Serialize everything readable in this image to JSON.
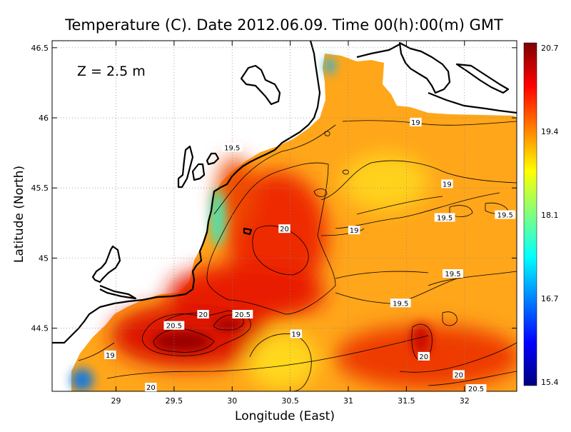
{
  "title": "Temperature (C). Date 2012.06.09. Time 00(h):00(m) GMT",
  "depth_label": "Z = 2.5 m",
  "colorbar": {
    "colors": [
      "#00007f",
      "#0000ff",
      "#007fff",
      "#00ffff",
      "#7fff7f",
      "#ffff00",
      "#ff7f00",
      "#ff0000",
      "#7f0000"
    ],
    "labels": [
      "20.7",
      "19.4",
      "18.1",
      "16.7",
      "15.4"
    ]
  },
  "chart_data": {
    "type": "heatmap",
    "title": "Temperature (C). Date 2012.06.09. Time 00(h):00(m) GMT",
    "xlabel": "Longitude (East)",
    "ylabel": "Latitude (North)",
    "xlim": [
      28.45,
      32.45
    ],
    "ylim": [
      44.05,
      46.55
    ],
    "x_ticks": [
      "29",
      "29.5",
      "30",
      "30.5",
      "31",
      "31.5",
      "32"
    ],
    "y_ticks": [
      "44.5",
      "45",
      "45.5",
      "46",
      "46.5"
    ],
    "grid": true,
    "value_range": [
      15.4,
      20.7
    ],
    "colorbar_ticks": [
      "20.7",
      "19.4",
      "18.1",
      "16.7",
      "15.4"
    ],
    "contour_labels": [
      {
        "lon": 31.58,
        "lat": 45.97,
        "text": "19"
      },
      {
        "lon": 30.0,
        "lat": 45.79,
        "text": "19.5"
      },
      {
        "lon": 31.85,
        "lat": 45.53,
        "text": "19"
      },
      {
        "lon": 31.05,
        "lat": 45.2,
        "text": "19"
      },
      {
        "lon": 30.45,
        "lat": 45.21,
        "text": "20"
      },
      {
        "lon": 31.83,
        "lat": 45.29,
        "text": "19.5"
      },
      {
        "lon": 32.35,
        "lat": 45.31,
        "text": "19.5"
      },
      {
        "lon": 31.9,
        "lat": 44.89,
        "text": "19.5"
      },
      {
        "lon": 31.45,
        "lat": 44.68,
        "text": "19.5"
      },
      {
        "lon": 29.75,
        "lat": 44.6,
        "text": "20"
      },
      {
        "lon": 30.09,
        "lat": 44.6,
        "text": "20.5"
      },
      {
        "lon": 29.5,
        "lat": 44.52,
        "text": "20.5"
      },
      {
        "lon": 30.55,
        "lat": 44.46,
        "text": "19"
      },
      {
        "lon": 28.95,
        "lat": 44.31,
        "text": "19"
      },
      {
        "lon": 31.65,
        "lat": 44.3,
        "text": "20"
      },
      {
        "lon": 31.95,
        "lat": 44.17,
        "text": "20"
      },
      {
        "lon": 29.3,
        "lat": 44.08,
        "text": "20"
      },
      {
        "lon": 32.1,
        "lat": 44.07,
        "text": "20.5"
      }
    ]
  }
}
